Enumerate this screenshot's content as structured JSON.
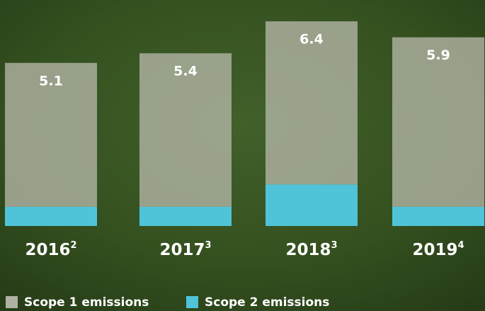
{
  "chart_data": {
    "type": "stacked-bar",
    "categories": [
      "2016",
      "2017",
      "2018",
      "2019"
    ],
    "footnotes": [
      "2",
      "3",
      "3",
      "4"
    ],
    "totals": [
      5.1,
      5.4,
      6.4,
      5.9
    ],
    "series": [
      {
        "name": "Scope 1 emissions",
        "color": "#aeb2a2",
        "values": [
          4.5,
          4.8,
          5.1,
          5.3
        ]
      },
      {
        "name": "Scope 2 emissions",
        "color": "#4fc4d8",
        "values": [
          0.6,
          0.6,
          1.3,
          0.6
        ]
      }
    ],
    "ylim": [
      0,
      7
    ]
  }
}
